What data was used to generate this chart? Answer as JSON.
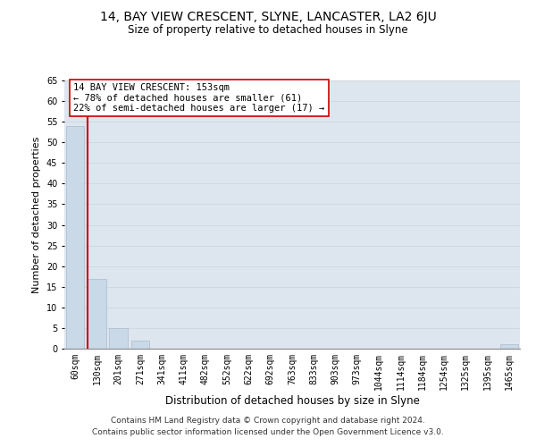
{
  "title": "14, BAY VIEW CRESCENT, SLYNE, LANCASTER, LA2 6JU",
  "subtitle": "Size of property relative to detached houses in Slyne",
  "xlabel": "Distribution of detached houses by size in Slyne",
  "ylabel": "Number of detached properties",
  "bar_labels": [
    "60sqm",
    "130sqm",
    "201sqm",
    "271sqm",
    "341sqm",
    "411sqm",
    "482sqm",
    "552sqm",
    "622sqm",
    "692sqm",
    "763sqm",
    "833sqm",
    "903sqm",
    "973sqm",
    "1044sqm",
    "1114sqm",
    "1184sqm",
    "1254sqm",
    "1325sqm",
    "1395sqm",
    "1465sqm"
  ],
  "bar_values": [
    54,
    17,
    5,
    2,
    0,
    0,
    0,
    0,
    0,
    0,
    0,
    0,
    0,
    0,
    0,
    0,
    0,
    0,
    0,
    0,
    1
  ],
  "bar_color": "#c9d9e8",
  "bar_edge_color": "#aabbcc",
  "property_line_color": "#cc0000",
  "annotation_box_text": "14 BAY VIEW CRESCENT: 153sqm\n← 78% of detached houses are smaller (61)\n22% of semi-detached houses are larger (17) →",
  "annotation_box_color": "#ffffff",
  "annotation_box_edgecolor": "#cc0000",
  "ylim": [
    0,
    65
  ],
  "yticks": [
    0,
    5,
    10,
    15,
    20,
    25,
    30,
    35,
    40,
    45,
    50,
    55,
    60,
    65
  ],
  "grid_color": "#d0d8e0",
  "background_color": "#dde6ef",
  "footer_line1": "Contains HM Land Registry data © Crown copyright and database right 2024.",
  "footer_line2": "Contains public sector information licensed under the Open Government Licence v3.0.",
  "title_fontsize": 10,
  "subtitle_fontsize": 8.5,
  "xlabel_fontsize": 8.5,
  "ylabel_fontsize": 8,
  "tick_fontsize": 7,
  "footer_fontsize": 6.5,
  "annotation_fontsize": 7.5
}
